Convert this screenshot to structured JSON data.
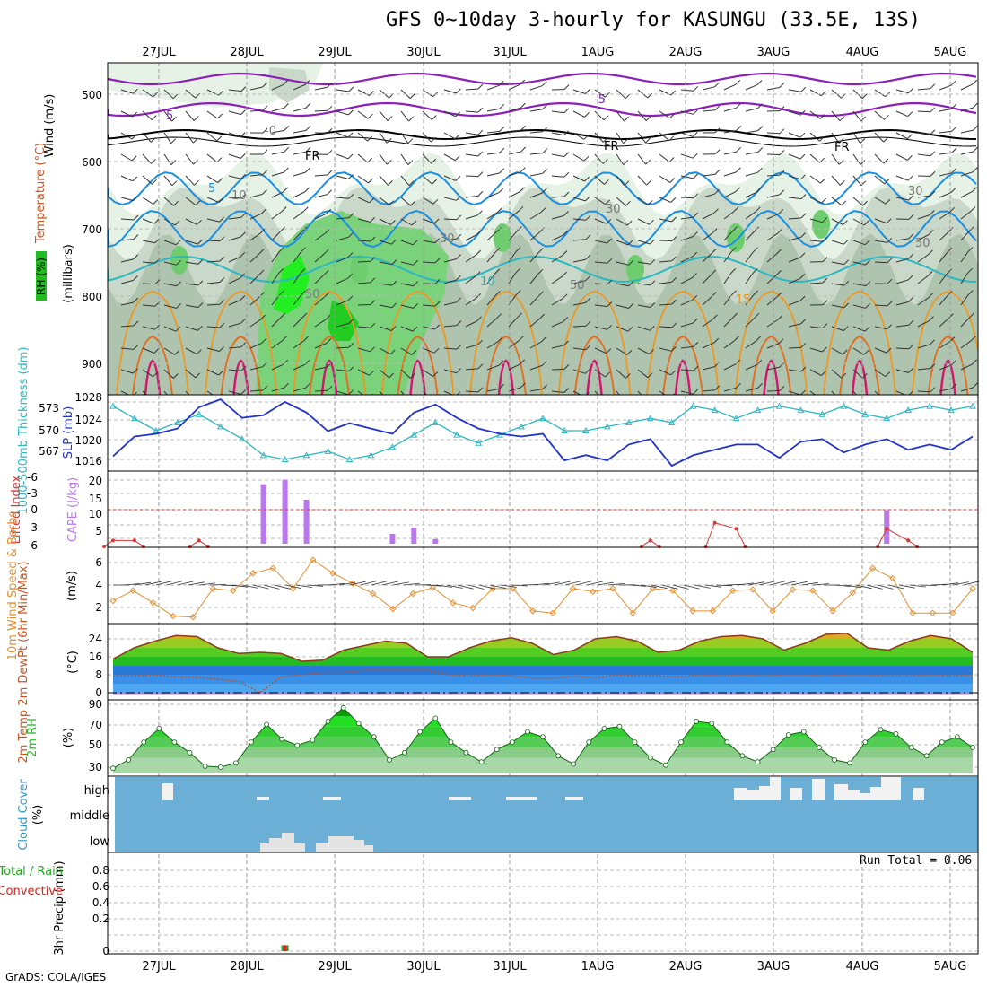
{
  "title": "GFS 0~10day 3-hourly for KASUNGU (33.5E, 13S)",
  "credit": "GrADS: COLA/IGES",
  "run_total": "Run Total = 0.06",
  "dates": [
    "27JUL",
    "28JUL",
    "29JUL",
    "30JUL",
    "31JUL",
    "1AUG",
    "2AUG",
    "3AUG",
    "4AUG",
    "5AUG"
  ],
  "colors": {
    "purple": "#8b1fb8",
    "cyan": "#19a9d8",
    "teal": "#2bb8c2",
    "slp_blue": "#2233cc",
    "orange": "#e89a2a",
    "magenta": "#d0186e",
    "cape_purple": "#bb77ee",
    "li_red": "#dd3333",
    "wind_orange": "#e69030",
    "rh_green": "#22bb22",
    "cloud_blue": "#6baed6",
    "precip_green": "#22aa22",
    "precip_red": "#dd2222"
  },
  "panels": {
    "upper": {
      "ylabel": "(millibars)",
      "legend": [
        "Wind (m/s)",
        "Temperature (°C)",
        "RH (%)"
      ],
      "y_ticks": [
        "500",
        "600",
        "700",
        "800",
        "900"
      ],
      "contour_labels": [
        "5",
        "-5",
        "-0",
        "FR",
        "FR",
        "FR",
        "5",
        "10",
        "10",
        "30",
        "30",
        "30",
        "50",
        "50",
        "15",
        "50"
      ]
    },
    "thickness": {
      "left_label": "1000-500mb Thickness (dm)",
      "right_label": "SLP (mb)",
      "left_ticks": [
        "573",
        "570",
        "567"
      ],
      "right_ticks": [
        "1028",
        "1024",
        "1020",
        "1016"
      ]
    },
    "cape": {
      "left_label": "Lifted Index",
      "right_label": "CAPE (J/kg)",
      "li_ticks": [
        "-6",
        "-3",
        "0",
        "3",
        "6"
      ],
      "cape_ticks": [
        "20",
        "15",
        "10",
        "5"
      ]
    },
    "wind10": {
      "label": "10m Wind Speed & Barbs",
      "unit": "(m/s)",
      "ticks": [
        "6",
        "4",
        "2"
      ]
    },
    "temp2m": {
      "label": "2m Temp 2m DewPt (6hr Min/Max)",
      "unit": "(°C)",
      "ticks": [
        "24",
        "16",
        "8",
        "0"
      ]
    },
    "rh2m": {
      "label": "2m RH",
      "unit": "(%)",
      "ticks": [
        "90",
        "70",
        "50",
        "30"
      ]
    },
    "cloud": {
      "label": "Cloud Cover",
      "unit": "(%)",
      "levels": [
        "high",
        "middle",
        "low"
      ]
    },
    "precip": {
      "label": "3hr Precip (mm)",
      "legend_total": "Total / Rain",
      "legend_conv": "Convective",
      "ticks": [
        "0.8",
        "0.6",
        "0.4",
        "0.2",
        "0"
      ]
    }
  },
  "chart_data": {
    "type": "line",
    "x_labels": [
      "27JUL",
      "28JUL",
      "29JUL",
      "30JUL",
      "31JUL",
      "1AUG",
      "2AUG",
      "3AUG",
      "4AUG",
      "5AUG"
    ],
    "series": [
      {
        "name": "SLP (mb)",
        "values": [
          1016.8,
          1020.5,
          1021,
          1022,
          1026,
          1027.5,
          1024,
          1024.5,
          1027,
          1025,
          1021.5,
          1023,
          1022,
          1021,
          1025,
          1026.5,
          1024,
          1022,
          1021,
          1020.5,
          1021,
          1016,
          1017,
          1016,
          1019,
          1020,
          1015,
          1017,
          1018,
          1019,
          1019,
          1016.5,
          1019.5,
          1020,
          1017.5,
          1019,
          1020,
          1018,
          1019,
          1018,
          1020.5
        ]
      },
      {
        "name": "1000-500mb Thickness (dm)",
        "values": [
          572.5,
          571,
          569.5,
          570.5,
          571.5,
          570,
          568.5,
          566.5,
          566,
          566.5,
          567,
          566,
          566.5,
          567.5,
          569,
          570.5,
          569,
          568,
          569,
          570,
          571,
          569.5,
          569.5,
          570,
          570.5,
          571,
          570.5,
          572.5,
          572,
          571,
          572,
          572.5,
          572,
          571.5,
          572.5,
          571.5,
          571,
          572,
          572.5,
          572,
          572.5
        ]
      },
      {
        "name": "CAPE (J/kg)",
        "values": [
          0,
          0,
          0,
          0,
          0,
          0,
          0,
          19.2,
          20.7,
          14.2,
          0,
          0,
          0,
          3.2,
          5.2,
          1.5,
          0,
          0,
          0,
          0,
          0,
          0,
          0,
          0,
          0,
          0,
          0,
          0,
          0,
          0,
          0,
          0,
          0,
          0,
          0,
          0,
          10.8,
          0,
          0,
          0,
          0
        ]
      },
      {
        "name": "Lifted Index",
        "values": [
          5,
          5,
          6,
          6,
          5,
          6,
          6,
          6,
          6,
          6,
          6,
          6,
          6,
          6,
          6,
          6,
          6,
          6,
          6,
          6,
          6,
          6,
          6,
          6,
          6,
          5,
          6,
          6,
          2,
          3,
          6,
          6,
          6,
          6,
          6,
          6,
          3,
          5,
          6,
          6,
          6
        ]
      },
      {
        "name": "10m Wind Speed (m/s)",
        "values": [
          2.8,
          3.8,
          2.6,
          1.3,
          1.2,
          4,
          3.8,
          5.5,
          6,
          4,
          6.8,
          5.5,
          4.5,
          3.5,
          2,
          3.5,
          4.1,
          2.6,
          2.1,
          4,
          4,
          1.8,
          1.6,
          4,
          3.7,
          4,
          1.6,
          4,
          3.8,
          1.8,
          1.8,
          3.8,
          3.9,
          1.8,
          3.9,
          3.8,
          1.8,
          3.6,
          6,
          5,
          1.6,
          1.6,
          1.6,
          4
        ]
      },
      {
        "name": "2m Temp (°C)",
        "values": [
          15,
          20,
          23,
          25.5,
          25,
          20,
          17.5,
          18,
          17.5,
          14,
          14.5,
          19,
          21,
          23,
          22,
          16,
          16,
          20,
          23,
          24.5,
          22,
          17,
          19,
          24,
          25,
          23,
          18,
          19,
          23,
          25,
          25.5,
          24,
          19,
          22,
          26,
          26.5,
          20,
          19,
          23,
          25.5,
          24,
          18
        ]
      },
      {
        "name": "2m DewPt (°C)",
        "values": [
          7.5,
          7.5,
          8,
          7,
          7,
          6,
          5,
          0,
          7,
          8,
          9,
          9,
          10,
          10,
          10,
          10,
          8,
          7.5,
          8,
          7.5,
          6.5,
          6.5,
          7.5,
          6.5,
          8,
          7.5,
          7.5,
          7,
          8,
          7.5,
          8,
          7.5,
          8,
          8,
          7.5,
          8,
          8,
          7.5,
          7.5,
          8,
          7.5,
          8
        ]
      },
      {
        "name": "2m RH (%)",
        "values": [
          30,
          38,
          55,
          68,
          55,
          45,
          32,
          31,
          35,
          55,
          72,
          58,
          52,
          57,
          75,
          88,
          73,
          60,
          38,
          45,
          65,
          78,
          55,
          45,
          36,
          48,
          55,
          65,
          60,
          42,
          34,
          55,
          68,
          70,
          55,
          40,
          33,
          55,
          75,
          73,
          55,
          42,
          36,
          48,
          62,
          65,
          50,
          38,
          35,
          55,
          67,
          63,
          50,
          42,
          55,
          60,
          50
        ]
      },
      {
        "name": "3hr Precip (mm)",
        "values": [
          0,
          0,
          0,
          0,
          0,
          0,
          0,
          0,
          0.06,
          0,
          0,
          0,
          0,
          0,
          0,
          0,
          0,
          0,
          0,
          0,
          0,
          0,
          0,
          0,
          0,
          0,
          0,
          0,
          0,
          0,
          0,
          0,
          0,
          0,
          0,
          0,
          0,
          0,
          0,
          0,
          0
        ]
      }
    ]
  }
}
